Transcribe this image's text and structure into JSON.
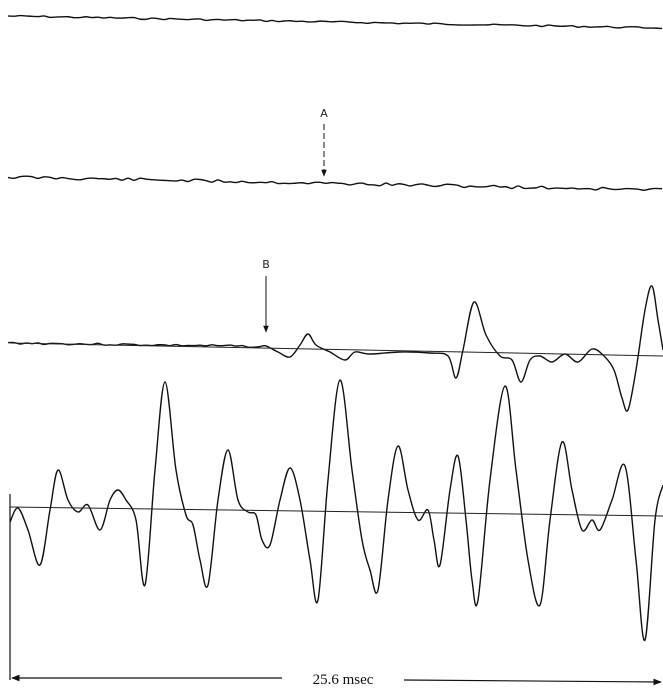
{
  "markers": {
    "a": "A",
    "b": "B"
  },
  "time_scale": "25.6 msec"
}
